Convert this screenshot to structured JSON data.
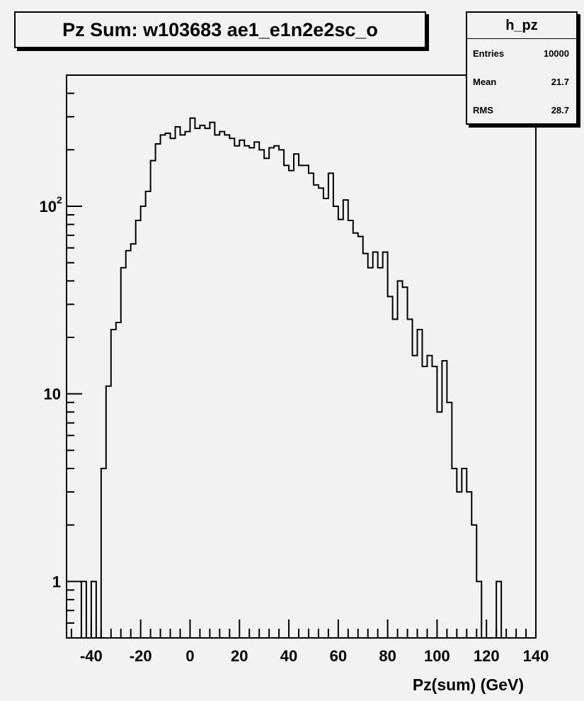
{
  "chart_data": {
    "type": "histogram",
    "title": "Pz Sum: w103683 ae1_e1n2e2sc_o",
    "xlabel": "Pz(sum) (GeV)",
    "ylabel": "",
    "yscale": "log",
    "xlim": [
      -50,
      140
    ],
    "ylim": [
      0.5,
      500
    ],
    "bin_width": 2,
    "x_ticks": [
      -40,
      -20,
      0,
      20,
      40,
      60,
      80,
      100,
      120,
      140
    ],
    "y_ticks": [
      {
        "value": 1,
        "label": "1"
      },
      {
        "value": 10,
        "label": "10"
      },
      {
        "value": 100,
        "label": "10",
        "exponent": "2"
      }
    ],
    "grid": false,
    "legend": "none",
    "line_color": "#000000",
    "background": "#f2f2f2",
    "bins": [
      {
        "x": -44,
        "y": 1
      },
      {
        "x": -42,
        "y": 0
      },
      {
        "x": -40,
        "y": 1
      },
      {
        "x": -38,
        "y": 0
      },
      {
        "x": -36,
        "y": 4
      },
      {
        "x": -34,
        "y": 11
      },
      {
        "x": -32,
        "y": 22
      },
      {
        "x": -30,
        "y": 24
      },
      {
        "x": -28,
        "y": 47
      },
      {
        "x": -26,
        "y": 58
      },
      {
        "x": -24,
        "y": 63
      },
      {
        "x": -22,
        "y": 84
      },
      {
        "x": -20,
        "y": 100
      },
      {
        "x": -18,
        "y": 120
      },
      {
        "x": -16,
        "y": 175
      },
      {
        "x": -14,
        "y": 215
      },
      {
        "x": -12,
        "y": 240
      },
      {
        "x": -10,
        "y": 245
      },
      {
        "x": -8,
        "y": 230
      },
      {
        "x": -6,
        "y": 265
      },
      {
        "x": -4,
        "y": 240
      },
      {
        "x": -2,
        "y": 250
      },
      {
        "x": 0,
        "y": 295
      },
      {
        "x": 2,
        "y": 260
      },
      {
        "x": 4,
        "y": 270
      },
      {
        "x": 6,
        "y": 260
      },
      {
        "x": 8,
        "y": 280
      },
      {
        "x": 10,
        "y": 240
      },
      {
        "x": 12,
        "y": 250
      },
      {
        "x": 14,
        "y": 240
      },
      {
        "x": 16,
        "y": 230
      },
      {
        "x": 18,
        "y": 210
      },
      {
        "x": 20,
        "y": 225
      },
      {
        "x": 22,
        "y": 210
      },
      {
        "x": 24,
        "y": 205
      },
      {
        "x": 26,
        "y": 220
      },
      {
        "x": 28,
        "y": 200
      },
      {
        "x": 30,
        "y": 180
      },
      {
        "x": 32,
        "y": 205
      },
      {
        "x": 34,
        "y": 210
      },
      {
        "x": 36,
        "y": 200
      },
      {
        "x": 38,
        "y": 165
      },
      {
        "x": 40,
        "y": 155
      },
      {
        "x": 42,
        "y": 190
      },
      {
        "x": 44,
        "y": 165
      },
      {
        "x": 46,
        "y": 165
      },
      {
        "x": 48,
        "y": 150
      },
      {
        "x": 50,
        "y": 130
      },
      {
        "x": 52,
        "y": 125
      },
      {
        "x": 54,
        "y": 110
      },
      {
        "x": 56,
        "y": 150
      },
      {
        "x": 58,
        "y": 100
      },
      {
        "x": 60,
        "y": 85
      },
      {
        "x": 62,
        "y": 108
      },
      {
        "x": 64,
        "y": 84
      },
      {
        "x": 66,
        "y": 72
      },
      {
        "x": 68,
        "y": 69
      },
      {
        "x": 70,
        "y": 56
      },
      {
        "x": 72,
        "y": 47
      },
      {
        "x": 74,
        "y": 57
      },
      {
        "x": 76,
        "y": 47
      },
      {
        "x": 78,
        "y": 57
      },
      {
        "x": 80,
        "y": 33
      },
      {
        "x": 82,
        "y": 25
      },
      {
        "x": 84,
        "y": 40
      },
      {
        "x": 86,
        "y": 37
      },
      {
        "x": 88,
        "y": 25
      },
      {
        "x": 90,
        "y": 16
      },
      {
        "x": 92,
        "y": 22
      },
      {
        "x": 94,
        "y": 14
      },
      {
        "x": 96,
        "y": 16
      },
      {
        "x": 98,
        "y": 14
      },
      {
        "x": 100,
        "y": 8
      },
      {
        "x": 102,
        "y": 15
      },
      {
        "x": 104,
        "y": 9
      },
      {
        "x": 106,
        "y": 4
      },
      {
        "x": 108,
        "y": 3
      },
      {
        "x": 110,
        "y": 4
      },
      {
        "x": 112,
        "y": 3
      },
      {
        "x": 114,
        "y": 2
      },
      {
        "x": 116,
        "y": 1
      },
      {
        "x": 118,
        "y": 0
      },
      {
        "x": 120,
        "y": 0
      },
      {
        "x": 122,
        "y": 0
      },
      {
        "x": 124,
        "y": 1
      },
      {
        "x": 126,
        "y": 0
      }
    ]
  },
  "stats": {
    "name": "h_pz",
    "rows": [
      {
        "label": "Entries",
        "value": "10000"
      },
      {
        "label": "Mean",
        "value": "21.7"
      },
      {
        "label": "RMS",
        "value": "28.7"
      }
    ]
  }
}
